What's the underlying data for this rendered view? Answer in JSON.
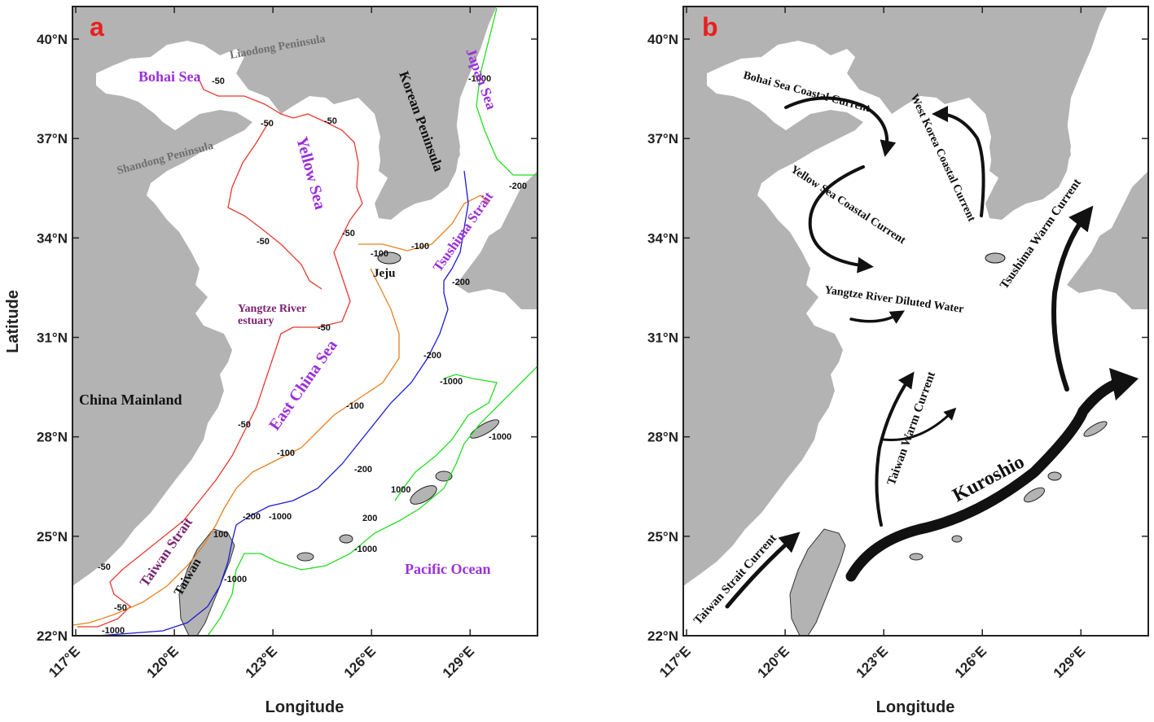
{
  "panel_a": {
    "letter": "a",
    "x_ticks": [
      "117°E",
      "120°E",
      "123°E",
      "126°E",
      "129°E"
    ],
    "y_ticks": [
      "40°N",
      "37°N",
      "34°N",
      "31°N",
      "28°N",
      "25°N",
      "22°N"
    ],
    "xlabel": "Longitude",
    "ylabel": "Latitude",
    "regions": {
      "bohai_sea": "Bohai Sea",
      "liaodong_peninsula": "Liaodong Peninsula",
      "korean_peninsula": "Korean Peninsula",
      "japan_sea": "Japan Sea",
      "shandong_peninsula": "Shandong Peninsula",
      "yellow_sea": "Yellow Sea",
      "tsushima_strait": "Tsushima Strait",
      "jeju": "Jeju",
      "yangtze_line1": "Yangtze River",
      "yangtze_line2": "estuary",
      "china_mainland": "China Mainland",
      "east_china_sea": "East China Sea",
      "taiwan_strait": "Taiwan Strait",
      "taiwan": "Taiwan",
      "pacific_ocean": "Pacific Ocean"
    },
    "contour_labels": {
      "m50": "-50",
      "m100": "-100",
      "m200": "-200",
      "m1000": "-1000",
      "p100": "100",
      "p200": "200",
      "p1000": "1000",
      "m1000b": "-1000b"
    },
    "contour_colors": {
      "depth_50": "#e8392f",
      "depth_100": "#e8801f",
      "depth_200": "#1b1bd6",
      "depth_1000": "#22dd22"
    }
  },
  "panel_b": {
    "letter": "b",
    "x_ticks": [
      "117°E",
      "120°E",
      "123°E",
      "126°E",
      "129°E"
    ],
    "y_ticks": [
      "40°N",
      "37°N",
      "34°N",
      "31°N",
      "28°N",
      "25°N",
      "22°N"
    ],
    "xlabel": "Longitude",
    "currents": {
      "bohai": "Bohai Sea Coastal Current",
      "west_korea": "West Korea Coastal Current",
      "yellow_sea": "Yellow Sea Coastal Current",
      "yangtze": "Yangtze River Diluted Water",
      "tsushima": "Tsushima Warm Current",
      "taiwan_warm": "Taiwan Warm Current",
      "kuroshio": "Kuroshio",
      "taiwan_strait": "Taiwan Strait Current"
    }
  },
  "colors": {
    "land": "#b3b3b3",
    "sea": "#ffffff",
    "frame": "#222222",
    "panel_letter": "#e8201e",
    "region_purple": "#9b30d9",
    "region_gray": "#6e6e6e",
    "region_black": "#111111",
    "region_darkpurple": "#7a1f6e"
  }
}
